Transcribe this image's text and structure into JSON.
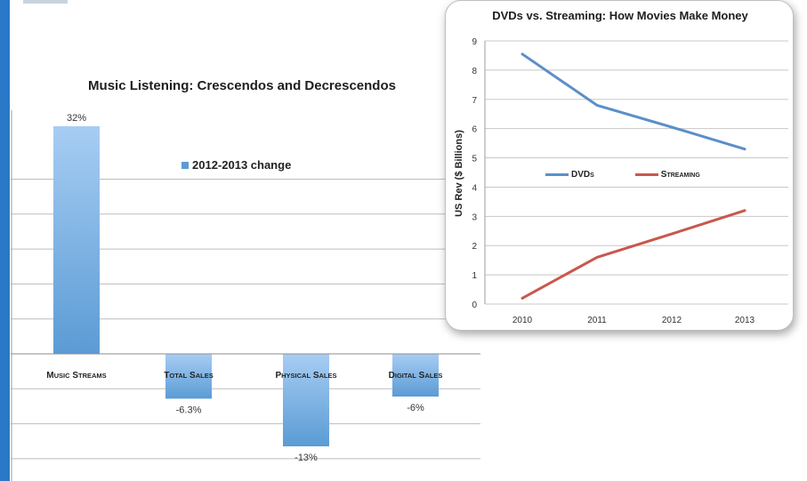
{
  "colors": {
    "accent": "#2a78c8",
    "bar": "#5b9bd5",
    "dvd": "#5b8fc9",
    "streaming": "#c9574d"
  },
  "chart_data": [
    {
      "type": "bar",
      "title": "Music Listening: Crescendos and Decrescendos",
      "categories": [
        "Music streams",
        "Total sales",
        "Physical sales",
        "Digital sales"
      ],
      "series": [
        {
          "name": "2012-2013 change",
          "values": [
            32,
            -6.3,
            -13,
            -6
          ]
        }
      ],
      "value_labels": [
        "32%",
        "-6.3%",
        "-13%",
        "-6%"
      ],
      "legend_position": "top-center",
      "grid": true
    },
    {
      "type": "line",
      "title": "DVDs vs. Streaming: How Movies Make Money",
      "x": [
        2010,
        2011,
        2012,
        2013
      ],
      "x_tick_labels": [
        "2010",
        "2011",
        "2012",
        "2013"
      ],
      "series": [
        {
          "name": "DVDs",
          "values": [
            8.55,
            6.8,
            6.05,
            5.3
          ]
        },
        {
          "name": "Streaming",
          "values": [
            0.2,
            1.6,
            2.4,
            3.2
          ]
        }
      ],
      "ylabel": "US Rev ($ Billions)",
      "ylim": [
        0,
        9
      ],
      "y_ticks": [
        "0",
        "1",
        "2",
        "3",
        "4",
        "5",
        "6",
        "7",
        "8",
        "9"
      ],
      "legend_position": "middle",
      "grid": true
    }
  ]
}
